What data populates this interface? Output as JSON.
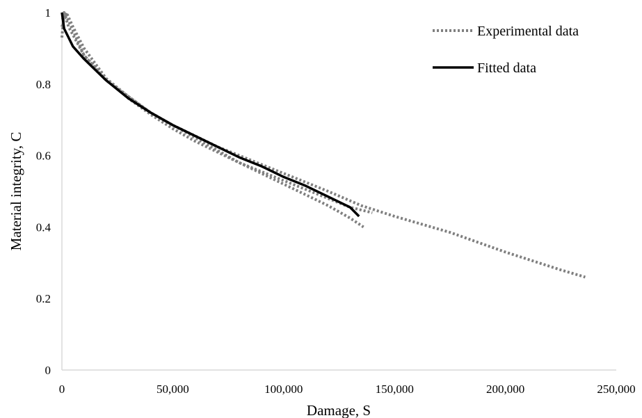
{
  "chart_data": {
    "type": "line",
    "title": "",
    "xlabel": "Damage, S",
    "ylabel": "Material integrity, C",
    "xlim": [
      0,
      250000
    ],
    "ylim": [
      0,
      1
    ],
    "x_ticks": [
      "0",
      "50,000",
      "100,000",
      "150,000",
      "200,000",
      "250,000"
    ],
    "y_ticks": [
      "0",
      "0.2",
      "0.4",
      "0.6",
      "0.8",
      "1"
    ],
    "grid": false,
    "legend_position": "top-right",
    "legend": [
      "Experimental data",
      "Fitted data"
    ],
    "series": [
      {
        "name": "Experimental data",
        "style": "dotted",
        "color": "#7f7f7f",
        "points": [
          [
            0,
            0.93
          ],
          [
            1000,
            1.0
          ],
          [
            3000,
            0.96
          ],
          [
            10000,
            0.88
          ],
          [
            20000,
            0.815
          ],
          [
            30000,
            0.765
          ],
          [
            40000,
            0.72
          ],
          [
            50000,
            0.685
          ],
          [
            60000,
            0.65
          ],
          [
            70000,
            0.615
          ],
          [
            80000,
            0.58
          ],
          [
            90000,
            0.55
          ],
          [
            100000,
            0.52
          ],
          [
            110000,
            0.49
          ],
          [
            120000,
            0.46
          ],
          [
            130000,
            0.425
          ],
          [
            136000,
            0.4
          ]
        ]
      },
      {
        "name": "Experimental data",
        "style": "dotted",
        "color": "#7f7f7f",
        "points": [
          [
            0,
            0.96
          ],
          [
            2000,
            1.0
          ],
          [
            5000,
            0.96
          ],
          [
            10000,
            0.9
          ],
          [
            20000,
            0.815
          ],
          [
            30000,
            0.76
          ],
          [
            40000,
            0.715
          ],
          [
            50000,
            0.675
          ],
          [
            60000,
            0.64
          ],
          [
            70000,
            0.61
          ],
          [
            80000,
            0.58
          ],
          [
            90000,
            0.555
          ],
          [
            100000,
            0.53
          ],
          [
            110000,
            0.505
          ],
          [
            120000,
            0.48
          ],
          [
            130000,
            0.455
          ],
          [
            140000,
            0.44
          ]
        ]
      },
      {
        "name": "Experimental data",
        "style": "dotted",
        "color": "#7f7f7f",
        "points": [
          [
            0,
            0.98
          ],
          [
            2000,
            0.99
          ],
          [
            5000,
            0.95
          ],
          [
            10000,
            0.88
          ],
          [
            20000,
            0.81
          ],
          [
            30000,
            0.765
          ],
          [
            40000,
            0.72
          ],
          [
            50000,
            0.685
          ],
          [
            60000,
            0.655
          ],
          [
            70000,
            0.625
          ],
          [
            80000,
            0.6
          ],
          [
            90000,
            0.575
          ],
          [
            100000,
            0.55
          ],
          [
            110000,
            0.525
          ],
          [
            120000,
            0.5
          ],
          [
            135000,
            0.46
          ],
          [
            150000,
            0.43
          ],
          [
            175000,
            0.385
          ],
          [
            200000,
            0.33
          ],
          [
            225000,
            0.28
          ],
          [
            236000,
            0.26
          ]
        ]
      },
      {
        "name": "Fitted data",
        "style": "solid",
        "color": "#000000",
        "points": [
          [
            0,
            1.0
          ],
          [
            1000,
            0.955
          ],
          [
            3000,
            0.93
          ],
          [
            5000,
            0.905
          ],
          [
            10000,
            0.87
          ],
          [
            15000,
            0.84
          ],
          [
            20000,
            0.81
          ],
          [
            30000,
            0.76
          ],
          [
            40000,
            0.72
          ],
          [
            50000,
            0.685
          ],
          [
            60000,
            0.655
          ],
          [
            70000,
            0.625
          ],
          [
            80000,
            0.595
          ],
          [
            90000,
            0.57
          ],
          [
            100000,
            0.54
          ],
          [
            110000,
            0.515
          ],
          [
            120000,
            0.485
          ],
          [
            130000,
            0.455
          ],
          [
            134000,
            0.43
          ]
        ]
      }
    ]
  }
}
